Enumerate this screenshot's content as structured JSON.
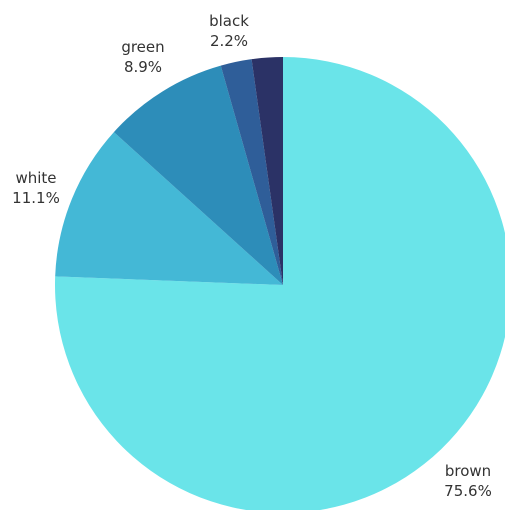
{
  "chart_data": {
    "type": "pie",
    "title": "",
    "slices": [
      {
        "label": "brown",
        "value": 75.6,
        "percent_text": "75.6%",
        "color": "#6ae4e9"
      },
      {
        "label": "white",
        "value": 11.1,
        "percent_text": "11.1%",
        "color": "#44b8d6"
      },
      {
        "label": "green",
        "value": 8.9,
        "percent_text": "8.9%",
        "color": "#2d8db9"
      },
      {
        "label": "",
        "value": 2.2,
        "percent_text": "",
        "color": "#2f5e99"
      },
      {
        "label": "black",
        "value": 2.2,
        "percent_text": "2.2%",
        "color": "#2b3266"
      }
    ],
    "start_angle_deg": 0,
    "direction": "clockwise",
    "legend": "none"
  }
}
